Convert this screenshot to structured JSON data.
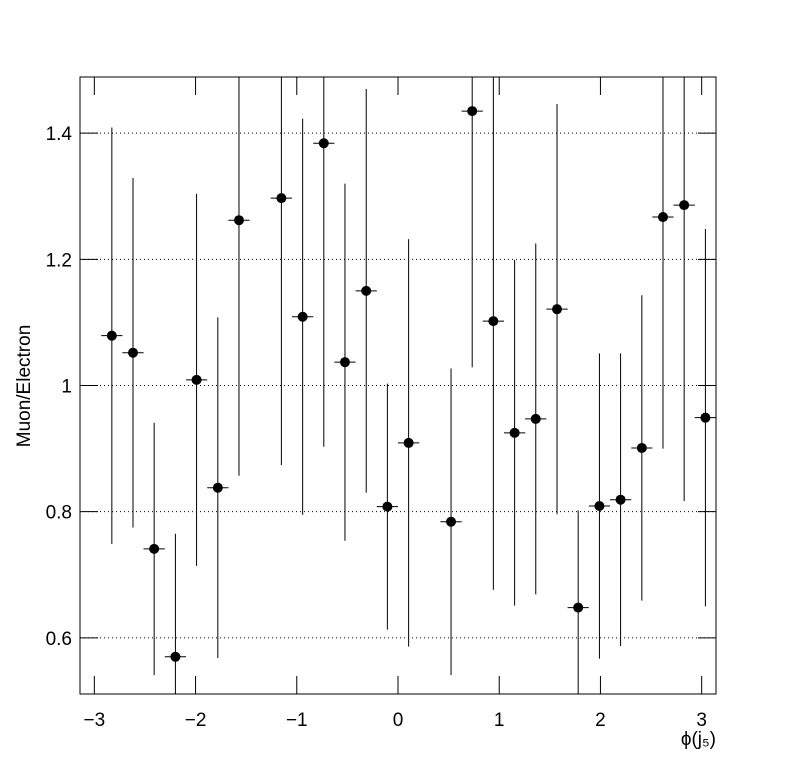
{
  "chart_data": {
    "type": "scatter",
    "xlabel": "ϕ(j₅)",
    "ylabel": "Muon/Electron",
    "x": [
      -3.037,
      -2.827,
      -2.618,
      -2.409,
      -2.199,
      -1.99,
      -1.78,
      -1.571,
      -1.361,
      -1.152,
      -0.942,
      -0.733,
      -0.524,
      -0.314,
      -0.105,
      0.105,
      0.314,
      0.524,
      0.733,
      0.942,
      1.152,
      1.361,
      1.571,
      1.78,
      1.99,
      2.199,
      2.409,
      2.618,
      2.827,
      3.037
    ],
    "x_error": 0.105,
    "values": [
      null,
      1.079,
      1.052,
      0.741,
      0.57,
      1.009,
      0.838,
      1.262,
      null,
      1.297,
      1.109,
      1.384,
      1.037,
      1.15,
      0.808,
      0.909,
      null,
      0.784,
      1.435,
      1.102,
      0.925,
      0.947,
      1.121,
      0.648,
      0.809,
      0.819,
      0.901,
      1.267,
      1.286,
      0.949
    ],
    "errors": [
      null,
      0.33,
      0.277,
      0.2,
      0.195,
      0.295,
      0.27,
      0.405,
      null,
      0.423,
      0.314,
      0.481,
      0.283,
      0.32,
      0.195,
      0.323,
      null,
      0.243,
      0.406,
      0.426,
      0.274,
      0.278,
      0.325,
      0.154,
      0.242,
      0.232,
      0.242,
      0.367,
      0.469,
      0.299
    ],
    "color": "#000000",
    "xlim": [
      -3.1416,
      3.1416
    ],
    "ylim": [
      0.511,
      1.489
    ],
    "xticks": [
      {
        "value": -3,
        "label": "−3"
      },
      {
        "value": -2,
        "label": "−2"
      },
      {
        "value": -1,
        "label": "−1"
      },
      0,
      1,
      2,
      3
    ],
    "yticks": [
      0.6,
      0.8,
      1,
      1.2,
      1.4
    ],
    "grid": true
  }
}
